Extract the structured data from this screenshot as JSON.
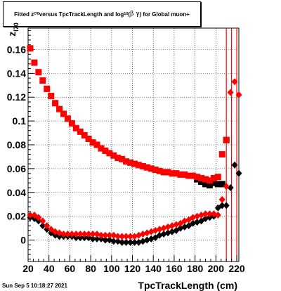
{
  "header": {
    "title_part1": "Fitted  z",
    "title_sub1": "I70",
    "title_part2": "  versus  TpcTrackLength and log",
    "title_sub2": "10",
    "title_part3": " (",
    "title_greek": "β  γ",
    "title_part4": ") for Global muon+"
  },
  "footer": {
    "date": "Sun Sep  5 10:18:27 2021"
  },
  "chart_data": {
    "type": "scatter",
    "title": "Fitted  zI70  versus  TpcTrackLength and log10 (β γ) for Global muon+",
    "xlabel": "TpcTrackLength (cm)",
    "ylabel_main": "z",
    "ylabel_sub": "I70",
    "xlim": [
      20,
      222
    ],
    "ylim": [
      -0.018,
      0.178
    ],
    "xticks": [
      20,
      40,
      60,
      80,
      100,
      120,
      140,
      160,
      180,
      200,
      220
    ],
    "xtick_labels": [
      "20",
      "40",
      "60",
      "80",
      "100",
      "120",
      "140",
      "160",
      "180",
      "200",
      "220"
    ],
    "yticks": [
      0,
      0.02,
      0.04,
      0.06,
      0.08,
      0.1,
      0.12,
      0.14,
      0.16
    ],
    "ytick_labels": [
      "0",
      "0.02",
      "0.04",
      "0.06",
      "0.08",
      "0.1",
      "0.12",
      "0.14",
      "0.16"
    ],
    "grid": true,
    "colors": {
      "red": "#ff0000",
      "black": "#000000"
    },
    "vlines": [
      210,
      215,
      220
    ],
    "series": [
      {
        "color": "red",
        "marker": "square",
        "points": [
          [
            22,
            0.161
          ],
          [
            26,
            0.149
          ],
          [
            30,
            0.141
          ],
          [
            34,
            0.134
          ],
          [
            38,
            0.127
          ],
          [
            42,
            0.121
          ],
          [
            46,
            0.115
          ],
          [
            50,
            0.11
          ],
          [
            54,
            0.106
          ],
          [
            58,
            0.102
          ],
          [
            62,
            0.098
          ],
          [
            66,
            0.094
          ],
          [
            70,
            0.091
          ],
          [
            74,
            0.088
          ],
          [
            78,
            0.085
          ],
          [
            82,
            0.082
          ],
          [
            86,
            0.08
          ],
          [
            90,
            0.077
          ],
          [
            94,
            0.075
          ],
          [
            98,
            0.073
          ],
          [
            102,
            0.071
          ],
          [
            106,
            0.069
          ],
          [
            110,
            0.068
          ],
          [
            114,
            0.066
          ],
          [
            118,
            0.065
          ],
          [
            122,
            0.064
          ],
          [
            126,
            0.063
          ],
          [
            130,
            0.062
          ],
          [
            134,
            0.061
          ],
          [
            138,
            0.06
          ],
          [
            142,
            0.059
          ],
          [
            146,
            0.058
          ],
          [
            150,
            0.057
          ],
          [
            154,
            0.057
          ],
          [
            158,
            0.056
          ],
          [
            162,
            0.056
          ],
          [
            166,
            0.055
          ],
          [
            170,
            0.055
          ],
          [
            174,
            0.054
          ],
          [
            178,
            0.054
          ],
          [
            182,
            0.053
          ],
          [
            186,
            0.052
          ],
          [
            190,
            0.051
          ],
          [
            194,
            0.05
          ],
          [
            198,
            0.052
          ],
          [
            202,
            0.053
          ],
          [
            206,
            0.072
          ],
          [
            210,
            0.084
          ]
        ]
      },
      {
        "color": "black",
        "marker": "square",
        "points": [
          [
            182,
            0.051
          ],
          [
            186,
            0.049
          ],
          [
            190,
            0.047
          ],
          [
            194,
            0.046
          ],
          [
            198,
            0.048
          ],
          [
            202,
            0.047
          ],
          [
            206,
            0.047
          ],
          [
            210,
            0.084
          ]
        ]
      },
      {
        "color": "red",
        "marker": "diamond",
        "points": [
          [
            22,
            0.021
          ],
          [
            26,
            0.021
          ],
          [
            30,
            0.019
          ],
          [
            34,
            0.016
          ],
          [
            38,
            0.012
          ],
          [
            42,
            0.009
          ],
          [
            46,
            0.007
          ],
          [
            50,
            0.006
          ],
          [
            54,
            0.005
          ],
          [
            58,
            0.005
          ],
          [
            62,
            0.005
          ],
          [
            66,
            0.005
          ],
          [
            70,
            0.005
          ],
          [
            74,
            0.005
          ],
          [
            78,
            0.005
          ],
          [
            82,
            0.005
          ],
          [
            86,
            0.005
          ],
          [
            90,
            0.004
          ],
          [
            94,
            0.004
          ],
          [
            98,
            0.004
          ],
          [
            102,
            0.004
          ],
          [
            106,
            0.003
          ],
          [
            110,
            0.003
          ],
          [
            114,
            0.003
          ],
          [
            118,
            0.003
          ],
          [
            122,
            0.003
          ],
          [
            126,
            0.004
          ],
          [
            130,
            0.005
          ],
          [
            134,
            0.006
          ],
          [
            138,
            0.007
          ],
          [
            142,
            0.008
          ],
          [
            146,
            0.009
          ],
          [
            150,
            0.01
          ],
          [
            154,
            0.011
          ],
          [
            158,
            0.012
          ],
          [
            162,
            0.013
          ],
          [
            166,
            0.014
          ],
          [
            170,
            0.016
          ],
          [
            174,
            0.017
          ],
          [
            178,
            0.019
          ],
          [
            182,
            0.02
          ],
          [
            186,
            0.021
          ],
          [
            190,
            0.022
          ],
          [
            194,
            0.022
          ],
          [
            198,
            0.022
          ],
          [
            202,
            0.021
          ],
          [
            206,
            0.034
          ],
          [
            210,
            0.045
          ],
          [
            214,
            0.124
          ],
          [
            218,
            0.133
          ],
          [
            222,
            0.122
          ]
        ]
      },
      {
        "color": "black",
        "marker": "diamond",
        "points": [
          [
            22,
            0.019
          ],
          [
            26,
            0.018
          ],
          [
            30,
            0.016
          ],
          [
            34,
            0.012
          ],
          [
            38,
            0.009
          ],
          [
            42,
            0.006
          ],
          [
            46,
            0.004
          ],
          [
            50,
            0.003
          ],
          [
            54,
            0.003
          ],
          [
            58,
            0.003
          ],
          [
            62,
            0.003
          ],
          [
            66,
            0.002
          ],
          [
            70,
            0.002
          ],
          [
            74,
            0.002
          ],
          [
            78,
            0.002
          ],
          [
            82,
            0.001
          ],
          [
            86,
            0.001
          ],
          [
            90,
            0.001
          ],
          [
            94,
            0.0
          ],
          [
            98,
            0.0
          ],
          [
            102,
            -0.001
          ],
          [
            106,
            -0.001
          ],
          [
            110,
            -0.002
          ],
          [
            114,
            -0.002
          ],
          [
            118,
            -0.002
          ],
          [
            122,
            -0.002
          ],
          [
            126,
            -0.002
          ],
          [
            130,
            -0.001
          ],
          [
            134,
            0.0
          ],
          [
            138,
            0.001
          ],
          [
            142,
            0.002
          ],
          [
            146,
            0.004
          ],
          [
            150,
            0.005
          ],
          [
            154,
            0.006
          ],
          [
            158,
            0.007
          ],
          [
            162,
            0.008
          ],
          [
            166,
            0.01
          ],
          [
            170,
            0.011
          ],
          [
            174,
            0.012
          ],
          [
            178,
            0.014
          ],
          [
            182,
            0.015
          ],
          [
            186,
            0.016
          ],
          [
            190,
            0.018
          ],
          [
            194,
            0.019
          ],
          [
            198,
            0.02
          ],
          [
            202,
            0.027
          ],
          [
            206,
            0.029
          ],
          [
            210,
            0.029
          ],
          [
            214,
            0.044
          ],
          [
            218,
            0.063
          ],
          [
            222,
            0.056
          ]
        ]
      }
    ]
  }
}
